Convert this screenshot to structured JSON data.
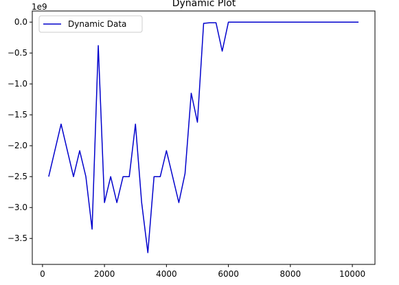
{
  "chart_data": {
    "type": "line",
    "title": "Dynamic Plot",
    "xlabel": "",
    "ylabel": "",
    "y_offset_label": "1e9",
    "xlim": [
      -330,
      10730
    ],
    "ylim": [
      -3.92,
      0.18
    ],
    "xticks": [
      0,
      2000,
      4000,
      6000,
      8000,
      10000
    ],
    "xtick_labels": [
      "0",
      "2000",
      "4000",
      "6000",
      "8000",
      "10000"
    ],
    "yticks": [
      0.0,
      -0.5,
      -1.0,
      -1.5,
      -2.0,
      -2.5,
      -3.0,
      -3.5
    ],
    "ytick_labels": [
      "0.0",
      "−0.5",
      "−1.0",
      "−1.5",
      "−2.0",
      "−2.5",
      "−3.0",
      "−3.5"
    ],
    "grid": false,
    "legend_position": "upper-left",
    "series": [
      {
        "name": "Dynamic Data",
        "color": "#0000cc",
        "x": [
          200,
          600,
          1000,
          1200,
          1400,
          1600,
          1800,
          2000,
          2200,
          2400,
          2600,
          2800,
          3000,
          3200,
          3400,
          3600,
          3800,
          4000,
          4200,
          4400,
          4600,
          4800,
          5000,
          5200,
          5400,
          5600,
          5800,
          6000,
          10200
        ],
        "y": [
          -2.5,
          -1.65,
          -2.5,
          -2.08,
          -2.5,
          -3.35,
          -0.38,
          -2.92,
          -2.5,
          -2.92,
          -2.5,
          -2.5,
          -1.65,
          -2.92,
          -3.73,
          -2.5,
          -2.5,
          -2.08,
          -2.5,
          -2.92,
          -2.45,
          -1.15,
          -1.62,
          -0.02,
          -0.01,
          -0.01,
          -0.47,
          0.0,
          0.0
        ]
      }
    ]
  }
}
